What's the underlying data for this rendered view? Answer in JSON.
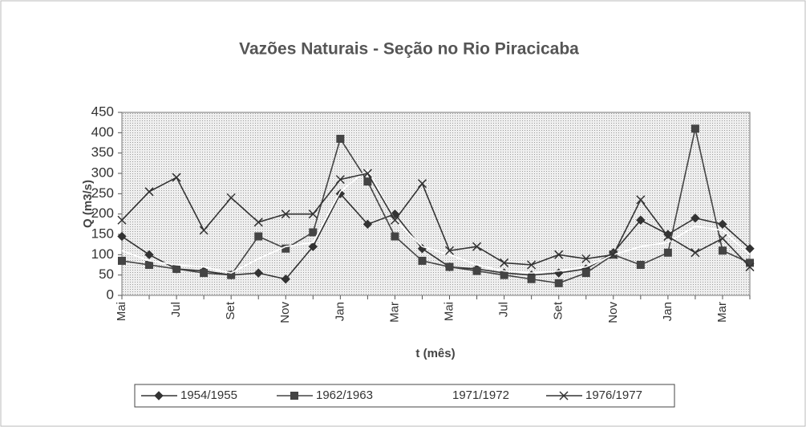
{
  "chart_data": {
    "type": "line",
    "title": "Vazões Naturais - Seção no Rio Piracicaba",
    "x_label": "t (mês)",
    "y_label": "Q (m3/s)",
    "categories": [
      "Mai",
      null,
      "Jul",
      null,
      "Set",
      null,
      "Nov",
      null,
      "Jan",
      null,
      "Mar",
      null,
      "Mai",
      null,
      "Jul",
      null,
      "Set",
      null,
      "Nov",
      null,
      "Jan",
      null,
      "Mar",
      null
    ],
    "ylim": [
      0,
      450
    ],
    "yticks": [
      0,
      50,
      100,
      150,
      200,
      250,
      300,
      350,
      400,
      450
    ],
    "grid": false,
    "legend": "bottom",
    "series": [
      {
        "name": "1954/1955",
        "color": "#333333",
        "marker": "diamond",
        "values": [
          145,
          100,
          65,
          60,
          50,
          55,
          40,
          120,
          250,
          175,
          200,
          115,
          70,
          65,
          55,
          50,
          55,
          65,
          105,
          185,
          150,
          190,
          175,
          115
        ]
      },
      {
        "name": "1962/1963",
        "color": "#444444",
        "marker": "square",
        "values": [
          85,
          75,
          65,
          55,
          50,
          145,
          115,
          155,
          385,
          280,
          145,
          85,
          70,
          60,
          50,
          40,
          30,
          55,
          100,
          75,
          105,
          410,
          110,
          80
        ]
      },
      {
        "name": "1971/1972",
        "color": "#ffffff",
        "marker": "none",
        "values": [
          110,
          85,
          75,
          70,
          55,
          90,
          120,
          130,
          255,
          310,
          185,
          120,
          100,
          75,
          60,
          55,
          60,
          70,
          100,
          120,
          130,
          170,
          160,
          100
        ]
      },
      {
        "name": "1976/1977",
        "color": "#333333",
        "marker": "x",
        "values": [
          185,
          255,
          290,
          160,
          240,
          180,
          200,
          200,
          285,
          300,
          185,
          275,
          110,
          120,
          80,
          75,
          100,
          90,
          100,
          235,
          145,
          105,
          140,
          70
        ]
      }
    ]
  }
}
